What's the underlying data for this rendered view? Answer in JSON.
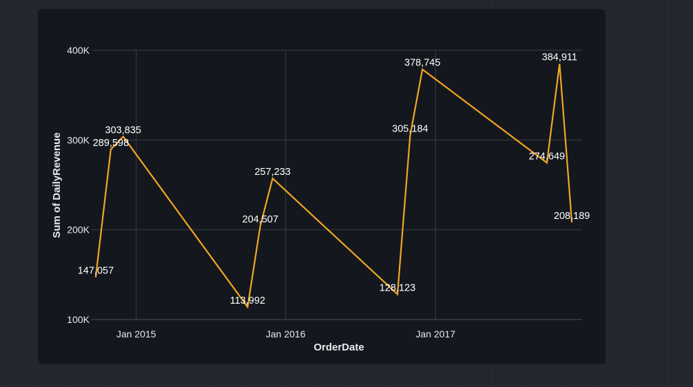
{
  "chart_data": {
    "type": "line",
    "xlabel": "OrderDate",
    "ylabel": "Sum of DailyRevenue",
    "ylim": [
      100000,
      400000
    ],
    "y_ticks": [
      {
        "value": 100000,
        "label": "100K"
      },
      {
        "value": 200000,
        "label": "200K"
      },
      {
        "value": 300000,
        "label": "300K"
      },
      {
        "value": 400000,
        "label": "400K"
      }
    ],
    "x_ticks": [
      {
        "date": "2015-01-01",
        "label": "Jan 2015"
      },
      {
        "date": "2016-01-01",
        "label": "Jan 2016"
      },
      {
        "date": "2017-01-01",
        "label": "Jan 2017"
      }
    ],
    "x_range": [
      "2014-09-14",
      "2017-12-25"
    ],
    "grid": true,
    "color": "#f5a623",
    "points": [
      {
        "date": "2014-09-24",
        "value": 147057,
        "label": "147,057"
      },
      {
        "date": "2014-10-31",
        "value": 289598,
        "label": "289,598"
      },
      {
        "date": "2014-11-30",
        "value": 303835,
        "label": "303,835"
      },
      {
        "date": "2015-09-30",
        "value": 113992,
        "label": "113,992"
      },
      {
        "date": "2015-10-31",
        "value": 204507,
        "label": "204,507"
      },
      {
        "date": "2015-11-30",
        "value": 257233,
        "label": "257,233"
      },
      {
        "date": "2016-09-30",
        "value": 128123,
        "label": "128,123"
      },
      {
        "date": "2016-10-31",
        "value": 305184,
        "label": "305,184"
      },
      {
        "date": "2016-11-30",
        "value": 378745,
        "label": "378,745"
      },
      {
        "date": "2017-09-30",
        "value": 274649,
        "label": "274,649"
      },
      {
        "date": "2017-10-31",
        "value": 384911,
        "label": "384,911"
      },
      {
        "date": "2017-11-30",
        "value": 208189,
        "label": "208,189"
      }
    ]
  }
}
